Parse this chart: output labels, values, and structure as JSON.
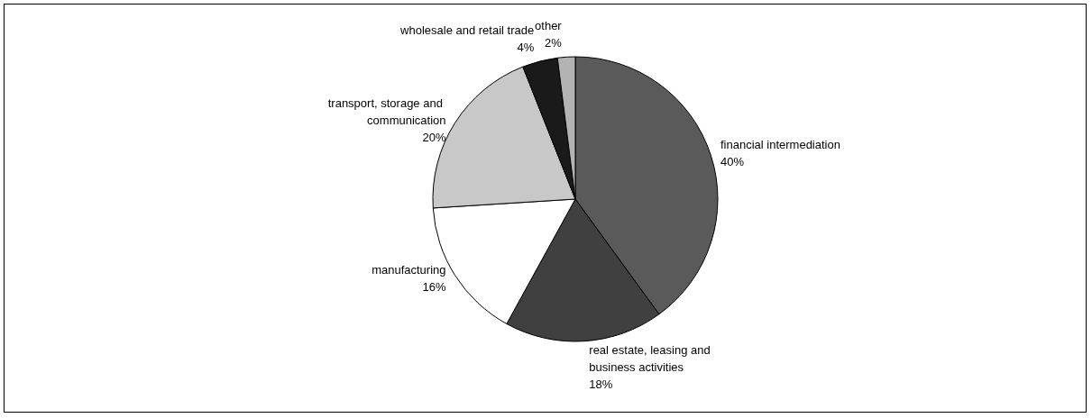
{
  "chart_data": {
    "type": "pie",
    "categories": [
      "financial intermediation",
      "real estate, leasing and business activities",
      "manufacturing",
      "transport, storage and communication",
      "wholesale and retail trade",
      "other"
    ],
    "values": [
      40,
      18,
      16,
      20,
      4,
      2
    ],
    "colors": [
      "#5a5a5a",
      "#404040",
      "#ffffff",
      "#c8c8c8",
      "#1a1a1a",
      "#b3b3b3"
    ],
    "value_labels": [
      "40%",
      "18%",
      "16%",
      "20%",
      "4%",
      "2%"
    ],
    "legend": false
  }
}
